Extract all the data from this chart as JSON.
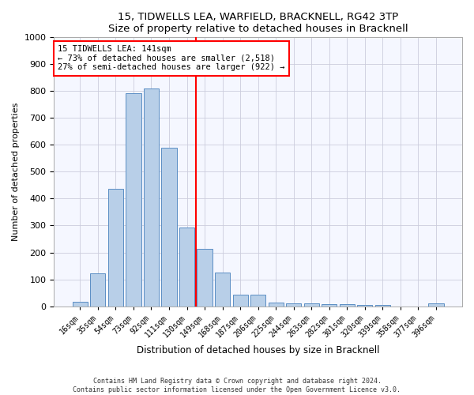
{
  "title": "15, TIDWELLS LEA, WARFIELD, BRACKNELL, RG42 3TP",
  "subtitle": "Size of property relative to detached houses in Bracknell",
  "xlabel": "Distribution of detached houses by size in Bracknell",
  "ylabel": "Number of detached properties",
  "categories": [
    "16sqm",
    "35sqm",
    "54sqm",
    "73sqm",
    "92sqm",
    "111sqm",
    "130sqm",
    "149sqm",
    "168sqm",
    "187sqm",
    "206sqm",
    "225sqm",
    "244sqm",
    "263sqm",
    "282sqm",
    "301sqm",
    "320sqm",
    "339sqm",
    "358sqm",
    "377sqm",
    "396sqm"
  ],
  "values": [
    18,
    122,
    435,
    790,
    808,
    590,
    292,
    212,
    125,
    42,
    42,
    15,
    10,
    10,
    8,
    8,
    5,
    5,
    0,
    0,
    10
  ],
  "bar_color": "#b8cfe8",
  "bar_edge_color": "#5b8ec4",
  "vline_color": "red",
  "annotation_text": "15 TIDWELLS LEA: 141sqm\n← 73% of detached houses are smaller (2,518)\n27% of semi-detached houses are larger (922) →",
  "annotation_box_color": "white",
  "annotation_box_edge_color": "red",
  "ylim": [
    0,
    1000
  ],
  "yticks": [
    0,
    100,
    200,
    300,
    400,
    500,
    600,
    700,
    800,
    900,
    1000
  ],
  "footer_line1": "Contains HM Land Registry data © Crown copyright and database right 2024.",
  "footer_line2": "Contains public sector information licensed under the Open Government Licence v3.0.",
  "bg_color": "#ffffff",
  "plot_bg_color": "#f5f7ff",
  "grid_color": "#ccccdd"
}
